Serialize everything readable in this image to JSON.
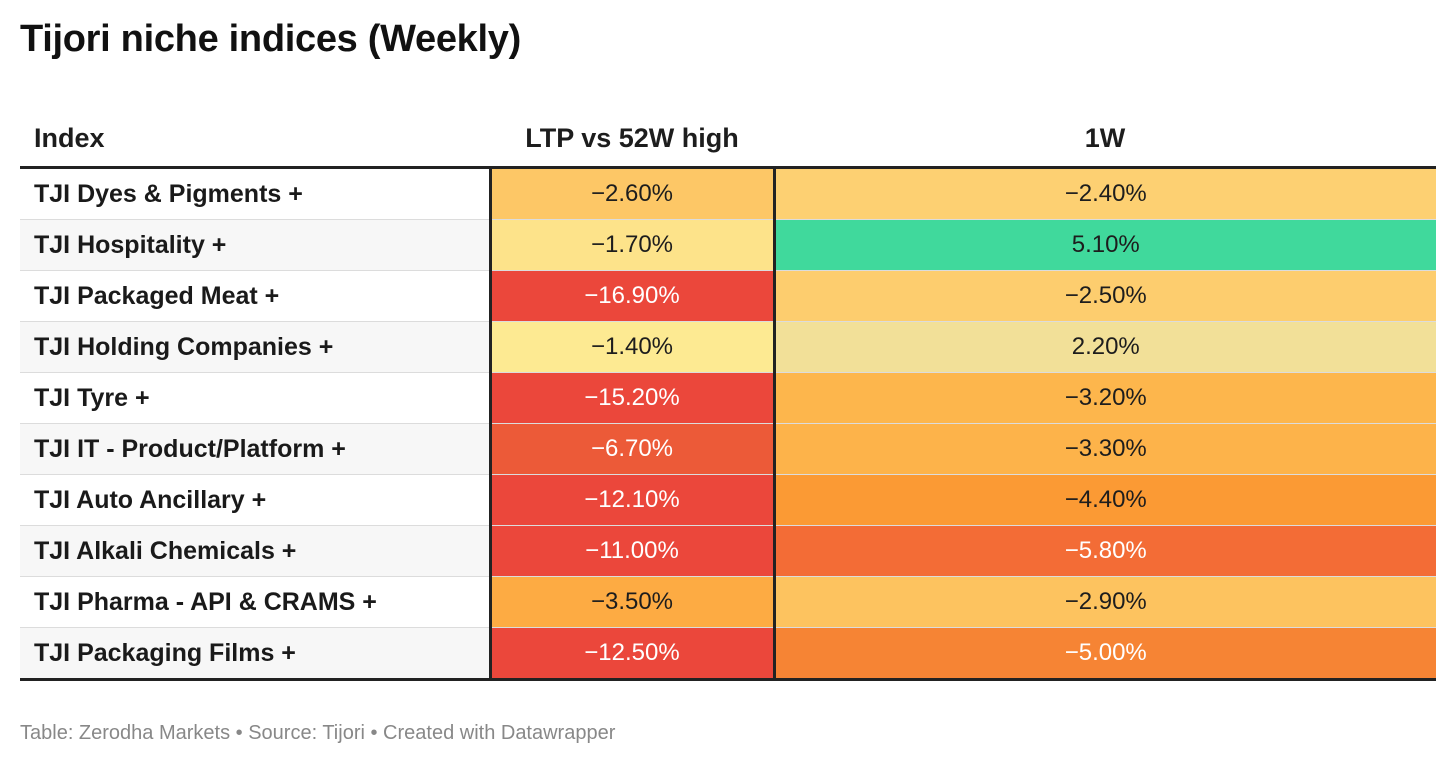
{
  "title": "Tijori niche indices (Weekly)",
  "footer": "Table: Zerodha Markets • Source: Tijori • Created with Datawrapper",
  "chart_data": {
    "type": "table",
    "title": "Tijori niche indices (Weekly)",
    "columns": [
      "Index",
      "LTP vs 52W high",
      "1W"
    ],
    "rows": [
      {
        "index": "TJI Dyes & Pigments +",
        "ltp_vs_52w_high": "−2.60%",
        "ltp_color": "#fdc766",
        "ltp_text_color": "#1d1d1d",
        "w1": "−2.40%",
        "w1_color": "#fdd072",
        "w1_text_color": "#1d1d1d"
      },
      {
        "index": "TJI Hospitality +",
        "ltp_vs_52w_high": "−1.70%",
        "ltp_color": "#fde38a",
        "ltp_text_color": "#1d1d1d",
        "w1": "5.10%",
        "w1_color": "#40d99c",
        "w1_text_color": "#1d1d1d"
      },
      {
        "index": "TJI Packaged Meat +",
        "ltp_vs_52w_high": "−16.90%",
        "ltp_color": "#eb473b",
        "ltp_text_color": "#ffffff",
        "w1": "−2.50%",
        "w1_color": "#fdcd6e",
        "w1_text_color": "#1d1d1d"
      },
      {
        "index": "TJI Holding Companies +",
        "ltp_vs_52w_high": "−1.40%",
        "ltp_color": "#fdea92",
        "ltp_text_color": "#1d1d1d",
        "w1": "2.20%",
        "w1_color": "#f2e098",
        "w1_text_color": "#1d1d1d"
      },
      {
        "index": "TJI Tyre +",
        "ltp_vs_52w_high": "−15.20%",
        "ltp_color": "#eb473b",
        "ltp_text_color": "#ffffff",
        "w1": "−3.20%",
        "w1_color": "#fdb64c",
        "w1_text_color": "#1d1d1d"
      },
      {
        "index": "TJI IT - Product/Platform +",
        "ltp_vs_52w_high": "−6.70%",
        "ltp_color": "#ec5a38",
        "ltp_text_color": "#ffffff",
        "w1": "−3.30%",
        "w1_color": "#fdb34a",
        "w1_text_color": "#1d1d1d"
      },
      {
        "index": "TJI Auto Ancillary +",
        "ltp_vs_52w_high": "−12.10%",
        "ltp_color": "#eb473b",
        "ltp_text_color": "#ffffff",
        "w1": "−4.40%",
        "w1_color": "#fb9a34",
        "w1_text_color": "#1d1d1d"
      },
      {
        "index": "TJI Alkali Chemicals +",
        "ltp_vs_52w_high": "−11.00%",
        "ltp_color": "#eb473b",
        "ltp_text_color": "#ffffff",
        "w1": "−5.80%",
        "w1_color": "#f36c36",
        "w1_text_color": "#ffffff"
      },
      {
        "index": "TJI Pharma - API & CRAMS +",
        "ltp_vs_52w_high": "−3.50%",
        "ltp_color": "#fdab43",
        "ltp_text_color": "#1d1d1d",
        "w1": "−2.90%",
        "w1_color": "#fdc35f",
        "w1_text_color": "#1d1d1d"
      },
      {
        "index": "TJI Packaging Films +",
        "ltp_vs_52w_high": "−12.50%",
        "ltp_color": "#eb473b",
        "ltp_text_color": "#ffffff",
        "w1": "−5.00%",
        "w1_color": "#f68434",
        "w1_text_color": "#ffffff"
      }
    ]
  }
}
